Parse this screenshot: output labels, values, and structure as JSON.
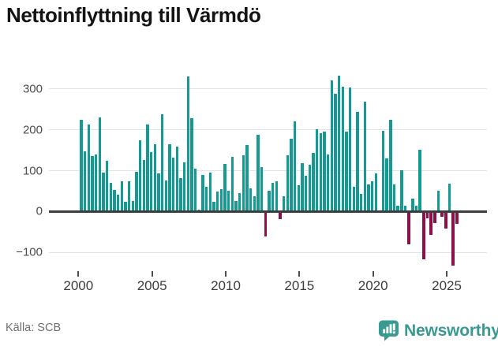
{
  "header": {
    "title": "Nettoinflyttning till Värmdö"
  },
  "footer": {
    "source": "Källa: SCB",
    "brand": "Newsworthy"
  },
  "colors": {
    "positive": "#149a94",
    "negative": "#8c1045",
    "axis": "#3d3d3d",
    "grid": "#e4e4e4",
    "brand_teal": "#3a9a92",
    "text_muted": "#6e6e6e"
  },
  "chart_data": {
    "type": "bar",
    "title": "Nettoinflyttning till Värmdö",
    "source": "SCB",
    "grid": "horizontal",
    "legend": "none",
    "x_tick_labels": [
      "2000",
      "2005",
      "2010",
      "2015",
      "2020",
      "2025"
    ],
    "y_tick_labels": [
      "300",
      "200",
      "100",
      "0",
      "−100"
    ],
    "y_tick_values": [
      300,
      200,
      100,
      0,
      -100
    ],
    "ylim": [
      -150,
      350
    ],
    "bar_color_positive": "#149a94",
    "bar_color_negative": "#8c1045",
    "categories": [
      "2000Q1",
      "2000Q2",
      "2000Q3",
      "2000Q4",
      "2001Q1",
      "2001Q2",
      "2001Q3",
      "2001Q4",
      "2002Q1",
      "2002Q2",
      "2002Q3",
      "2002Q4",
      "2003Q1",
      "2003Q2",
      "2003Q3",
      "2003Q4",
      "2004Q1",
      "2004Q2",
      "2004Q3",
      "2004Q4",
      "2005Q1",
      "2005Q2",
      "2005Q3",
      "2005Q4",
      "2006Q1",
      "2006Q2",
      "2006Q3",
      "2006Q4",
      "2007Q1",
      "2007Q2",
      "2007Q3",
      "2007Q4",
      "2008Q1",
      "2008Q2",
      "2008Q3",
      "2008Q4",
      "2009Q1",
      "2009Q2",
      "2009Q3",
      "2009Q4",
      "2010Q1",
      "2010Q2",
      "2010Q3",
      "2010Q4",
      "2011Q1",
      "2011Q2",
      "2011Q3",
      "2011Q4",
      "2012Q1",
      "2012Q2",
      "2012Q3",
      "2012Q4",
      "2013Q1",
      "2013Q2",
      "2013Q3",
      "2013Q4",
      "2014Q1",
      "2014Q2",
      "2014Q3",
      "2014Q4",
      "2015Q1",
      "2015Q2",
      "2015Q3",
      "2015Q4",
      "2016Q1",
      "2016Q2",
      "2016Q3",
      "2016Q4",
      "2017Q1",
      "2017Q2",
      "2017Q3",
      "2017Q4",
      "2018Q1",
      "2018Q2",
      "2018Q3",
      "2018Q4",
      "2019Q1",
      "2019Q2",
      "2019Q3",
      "2019Q4",
      "2020Q1",
      "2020Q2",
      "2020Q3",
      "2020Q4",
      "2021Q1",
      "2021Q2",
      "2021Q3",
      "2021Q4",
      "2022Q1",
      "2022Q2",
      "2022Q3",
      "2022Q4",
      "2023Q1",
      "2023Q2",
      "2023Q3",
      "2023Q4",
      "2024Q1",
      "2024Q2",
      "2024Q3",
      "2024Q4",
      "2025Q1",
      "2025Q2",
      "2025Q3"
    ],
    "values": [
      225,
      148,
      212,
      135,
      140,
      230,
      95,
      124,
      70,
      52,
      42,
      74,
      24,
      74,
      26,
      98,
      175,
      127,
      212,
      146,
      164,
      93,
      238,
      76,
      165,
      131,
      159,
      82,
      120,
      330,
      228,
      105,
      5,
      89,
      61,
      96,
      24,
      49,
      54,
      117,
      51,
      133,
      26,
      45,
      138,
      162,
      56,
      38,
      187,
      109,
      -62,
      50,
      70,
      74,
      -18,
      38,
      138,
      179,
      221,
      64,
      119,
      87,
      115,
      144,
      202,
      192,
      196,
      140,
      321,
      289,
      332,
      305,
      196,
      304,
      61,
      244,
      43,
      268,
      67,
      73,
      93,
      3,
      197,
      130,
      224,
      66,
      14,
      101,
      14,
      -80,
      31,
      15,
      152,
      -118,
      -16,
      -58,
      -29,
      51,
      -13,
      -42,
      68,
      -132,
      -30
    ]
  }
}
